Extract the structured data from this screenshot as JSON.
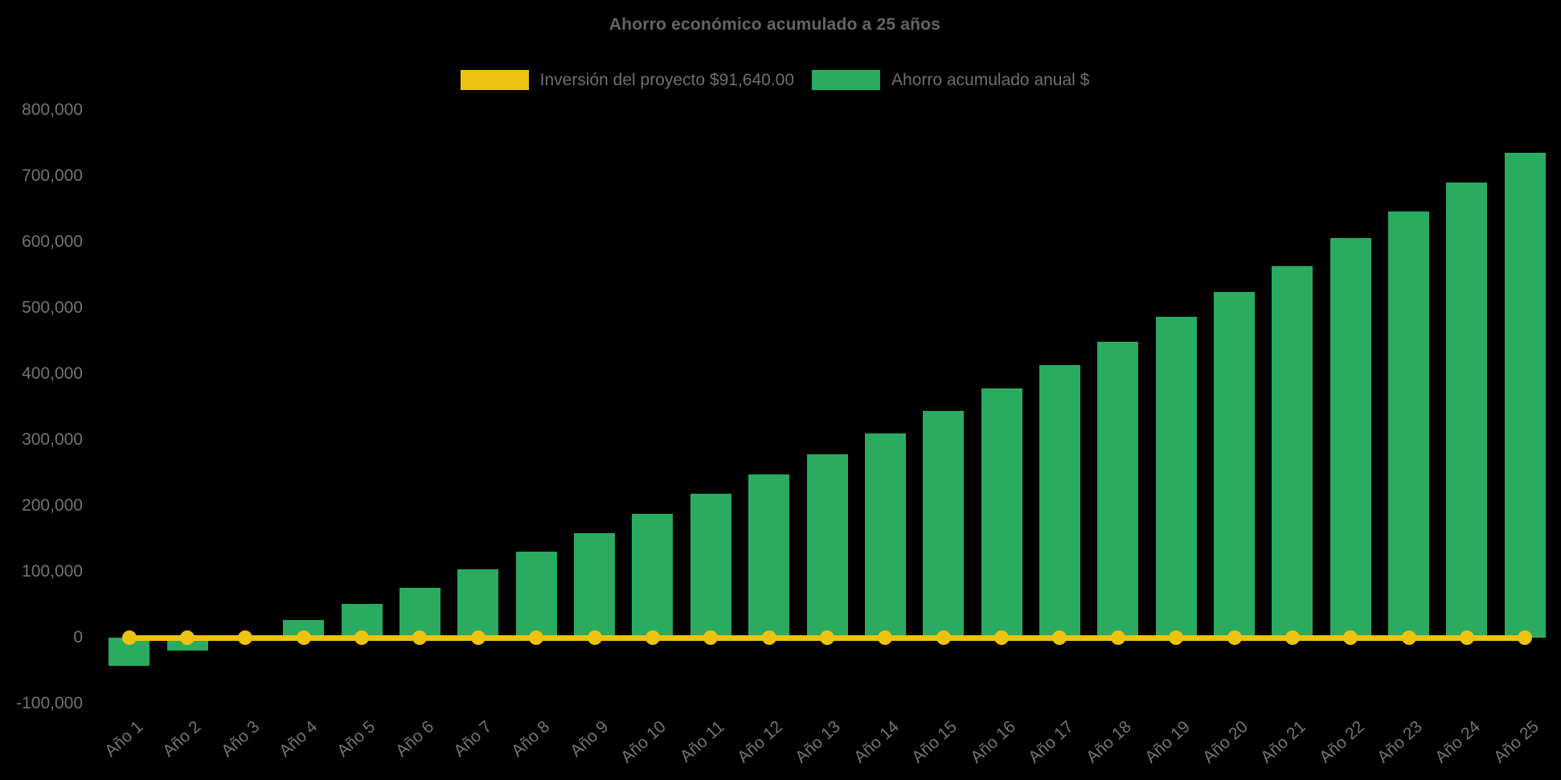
{
  "chart_data": {
    "type": "bar",
    "title": "Ahorro económico acumulado a 25 años",
    "xlabel": "",
    "ylabel": "",
    "background_color": "#000000",
    "text_color": "#737373",
    "title_color": "#646464",
    "grid": false,
    "legend_position": "top-center",
    "ylim": [
      -100000,
      800000
    ],
    "ytick_step": 100000,
    "yticks": [
      {
        "value": 800000,
        "label": "800,000"
      },
      {
        "value": 700000,
        "label": "700,000"
      },
      {
        "value": 600000,
        "label": "600,000"
      },
      {
        "value": 500000,
        "label": "500,000"
      },
      {
        "value": 400000,
        "label": "400,000"
      },
      {
        "value": 300000,
        "label": "300,000"
      },
      {
        "value": 200000,
        "label": "200,000"
      },
      {
        "value": 100000,
        "label": "100,000"
      },
      {
        "value": 0,
        "label": "0"
      },
      {
        "value": -100000,
        "label": "-100,000"
      }
    ],
    "categories": [
      "Año 1",
      "Año 2",
      "Año 3",
      "Año 4",
      "Año 5",
      "Año 6",
      "Año 7",
      "Año 8",
      "Año 9",
      "Año 10",
      "Año 11",
      "Año 12",
      "Año 13",
      "Año 14",
      "Año 15",
      "Año 16",
      "Año 17",
      "Año 18",
      "Año 19",
      "Año 20",
      "Año 21",
      "Año 22",
      "Año 23",
      "Año 24",
      "Año 25"
    ],
    "series": [
      {
        "name": "Inversión del proyecto $91,640.00",
        "type": "line",
        "color": "#edc211",
        "marker": "circle",
        "values": [
          0,
          0,
          0,
          0,
          0,
          0,
          0,
          0,
          0,
          0,
          0,
          0,
          0,
          0,
          0,
          0,
          0,
          0,
          0,
          0,
          0,
          0,
          0,
          0,
          0
        ]
      },
      {
        "name": "Ahorro acumulado anual $",
        "type": "bar",
        "color": "#2aab60",
        "values": [
          -43000,
          -20000,
          4000,
          27000,
          51000,
          76000,
          104000,
          130000,
          158000,
          188000,
          218000,
          248000,
          278000,
          310000,
          344000,
          378000,
          413000,
          449000,
          487000,
          525000,
          564000,
          606000,
          646000,
          690000,
          735000
        ]
      }
    ]
  }
}
